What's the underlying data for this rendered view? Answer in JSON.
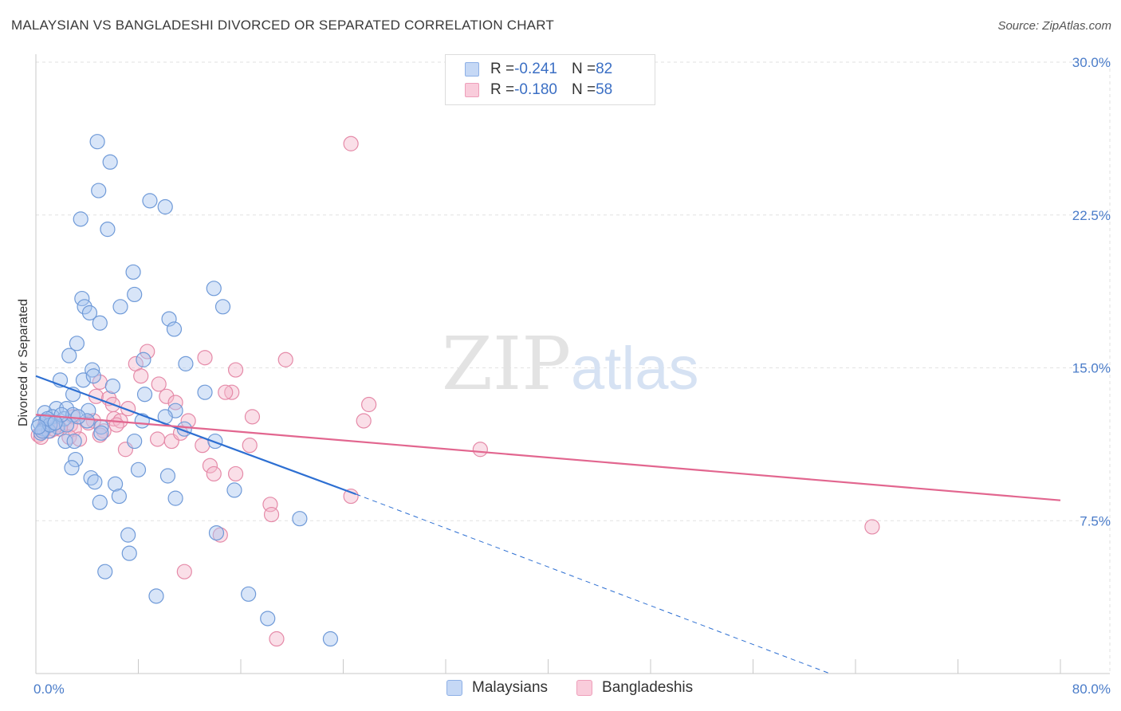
{
  "title": "MALAYSIAN VS BANGLADESHI DIVORCED OR SEPARATED CORRELATION CHART",
  "source": "Source: ZipAtlas.com",
  "watermark": {
    "zip": "ZIP",
    "atlas": "atlas"
  },
  "legend": {
    "rows": [
      {
        "r_label": "R = ",
        "r_value": "-0.241",
        "n_label": "N = ",
        "n_value": "82",
        "color": "#a9c6f0"
      },
      {
        "r_label": "R = ",
        "r_value": "-0.180",
        "n_label": "N = ",
        "n_value": "58",
        "color": "#f4b8cc"
      }
    ]
  },
  "bottom_legend": [
    {
      "label": "Malaysians",
      "color": "#a9c6f0"
    },
    {
      "label": "Bangladeshis",
      "color": "#f4b8cc"
    }
  ],
  "colors": {
    "malaysian_fill": "#a9c6f0",
    "malaysian_stroke": "#6f9ad8",
    "malaysian_line": "#2d6fd2",
    "bangladeshi_fill": "#f4b8cc",
    "bangladeshi_stroke": "#e58aa8",
    "bangladeshi_line": "#e2668f",
    "tick_text": "#4a7cc9",
    "grid": "#e2e2e2"
  },
  "chart_data": {
    "type": "scatter",
    "title": "MALAYSIAN VS BANGLADESHI DIVORCED OR SEPARATED CORRELATION CHART",
    "xlabel": "",
    "ylabel": "Divorced or Separated",
    "xlim": [
      0,
      80
    ],
    "ylim": [
      0,
      30
    ],
    "x_tick_labels": [
      {
        "value": 0,
        "label": "0.0%"
      },
      {
        "value": 80,
        "label": "80.0%"
      }
    ],
    "y_tick_labels": [
      {
        "value": 7.5,
        "label": "7.5%"
      },
      {
        "value": 15,
        "label": "15.0%"
      },
      {
        "value": 22.5,
        "label": "22.5%"
      },
      {
        "value": 30,
        "label": "30.0%"
      }
    ],
    "grid": true,
    "legend_position": "top-center",
    "series": [
      {
        "name": "Malaysians",
        "trend": {
          "x": [
            0,
            25
          ],
          "y": [
            14.6,
            8.8
          ],
          "dashed_to": [
            62,
            0
          ]
        },
        "points": [
          [
            4.8,
            26.1
          ],
          [
            5.8,
            25.1
          ],
          [
            4.9,
            23.7
          ],
          [
            8.9,
            23.2
          ],
          [
            10.1,
            22.9
          ],
          [
            3.5,
            22.3
          ],
          [
            5.6,
            21.8
          ],
          [
            7.6,
            19.7
          ],
          [
            13.9,
            18.9
          ],
          [
            7.7,
            18.6
          ],
          [
            3.6,
            18.4
          ],
          [
            3.8,
            18.0
          ],
          [
            6.6,
            18.0
          ],
          [
            14.6,
            18.0
          ],
          [
            4.2,
            17.7
          ],
          [
            10.4,
            17.4
          ],
          [
            5.0,
            17.2
          ],
          [
            10.8,
            16.9
          ],
          [
            3.2,
            16.2
          ],
          [
            2.6,
            15.6
          ],
          [
            8.4,
            15.4
          ],
          [
            11.7,
            15.2
          ],
          [
            4.4,
            14.9
          ],
          [
            1.9,
            14.4
          ],
          [
            3.7,
            14.4
          ],
          [
            4.5,
            14.6
          ],
          [
            6.0,
            14.1
          ],
          [
            2.9,
            13.7
          ],
          [
            8.5,
            13.7
          ],
          [
            13.2,
            13.8
          ],
          [
            1.6,
            13.0
          ],
          [
            2.4,
            13.0
          ],
          [
            0.7,
            12.8
          ],
          [
            1.3,
            12.6
          ],
          [
            2.2,
            12.5
          ],
          [
            2.9,
            12.7
          ],
          [
            4.1,
            12.9
          ],
          [
            10.9,
            12.9
          ],
          [
            10.1,
            12.6
          ],
          [
            4.0,
            12.4
          ],
          [
            8.3,
            12.4
          ],
          [
            0.3,
            12.3
          ],
          [
            0.8,
            12.4
          ],
          [
            1.7,
            12.1
          ],
          [
            2.4,
            12.2
          ],
          [
            0.6,
            12.0
          ],
          [
            1.0,
            11.9
          ],
          [
            0.4,
            11.8
          ],
          [
            5.1,
            12.1
          ],
          [
            11.6,
            12.0
          ],
          [
            2.3,
            11.4
          ],
          [
            3.0,
            11.4
          ],
          [
            7.7,
            11.4
          ],
          [
            5.1,
            11.8
          ],
          [
            14.0,
            11.4
          ],
          [
            3.1,
            10.5
          ],
          [
            2.8,
            10.1
          ],
          [
            8.0,
            10.0
          ],
          [
            4.3,
            9.6
          ],
          [
            10.3,
            9.7
          ],
          [
            4.6,
            9.4
          ],
          [
            6.2,
            9.3
          ],
          [
            15.5,
            9.0
          ],
          [
            6.5,
            8.7
          ],
          [
            5.0,
            8.4
          ],
          [
            10.9,
            8.6
          ],
          [
            20.6,
            7.6
          ],
          [
            7.2,
            6.8
          ],
          [
            14.1,
            6.9
          ],
          [
            7.3,
            5.9
          ],
          [
            5.4,
            5.0
          ],
          [
            9.4,
            3.8
          ],
          [
            16.6,
            3.9
          ],
          [
            18.1,
            2.7
          ],
          [
            23.0,
            1.7
          ],
          [
            0.5,
            11.9
          ],
          [
            1.1,
            12.2
          ],
          [
            2.0,
            12.7
          ],
          [
            3.3,
            12.6
          ],
          [
            0.9,
            12.5
          ],
          [
            1.5,
            12.3
          ],
          [
            0.2,
            12.1
          ]
        ]
      },
      {
        "name": "Bangladeshis",
        "trend": {
          "x": [
            0,
            80
          ],
          "y": [
            12.7,
            8.5
          ]
        },
        "points": [
          [
            24.6,
            26.0
          ],
          [
            8.7,
            15.8
          ],
          [
            13.2,
            15.5
          ],
          [
            19.5,
            15.4
          ],
          [
            7.8,
            15.2
          ],
          [
            15.6,
            14.9
          ],
          [
            8.2,
            14.6
          ],
          [
            9.6,
            14.2
          ],
          [
            5.0,
            14.3
          ],
          [
            15.3,
            13.8
          ],
          [
            14.8,
            13.8
          ],
          [
            4.7,
            13.6
          ],
          [
            5.7,
            13.5
          ],
          [
            10.2,
            13.6
          ],
          [
            10.9,
            13.3
          ],
          [
            26.0,
            13.2
          ],
          [
            6.0,
            13.2
          ],
          [
            7.2,
            13.0
          ],
          [
            2.9,
            12.6
          ],
          [
            4.5,
            12.4
          ],
          [
            6.1,
            12.5
          ],
          [
            6.6,
            12.4
          ],
          [
            11.9,
            12.4
          ],
          [
            16.9,
            12.6
          ],
          [
            25.6,
            12.4
          ],
          [
            1.7,
            12.2
          ],
          [
            2.7,
            12.2
          ],
          [
            4.1,
            12.3
          ],
          [
            6.3,
            12.2
          ],
          [
            0.6,
            11.9
          ],
          [
            1.1,
            11.9
          ],
          [
            1.9,
            12.0
          ],
          [
            3.0,
            12.0
          ],
          [
            5.3,
            11.9
          ],
          [
            2.6,
            11.6
          ],
          [
            3.4,
            11.5
          ],
          [
            5.0,
            11.7
          ],
          [
            9.5,
            11.5
          ],
          [
            10.6,
            11.4
          ],
          [
            11.3,
            11.8
          ],
          [
            13.0,
            11.2
          ],
          [
            16.7,
            11.2
          ],
          [
            34.7,
            11.0
          ],
          [
            7.0,
            11.0
          ],
          [
            13.6,
            10.2
          ],
          [
            13.9,
            9.8
          ],
          [
            15.6,
            9.8
          ],
          [
            18.3,
            8.3
          ],
          [
            24.6,
            8.7
          ],
          [
            18.4,
            7.8
          ],
          [
            65.3,
            7.2
          ],
          [
            14.4,
            6.8
          ],
          [
            11.6,
            5.0
          ],
          [
            18.8,
            1.7
          ],
          [
            0.2,
            11.7
          ],
          [
            0.7,
            12.2
          ],
          [
            1.4,
            12.0
          ],
          [
            0.4,
            11.6
          ]
        ]
      }
    ]
  },
  "x_minor_ticks": [
    0,
    8,
    16,
    24,
    32,
    40,
    48,
    56,
    64,
    72,
    80
  ]
}
